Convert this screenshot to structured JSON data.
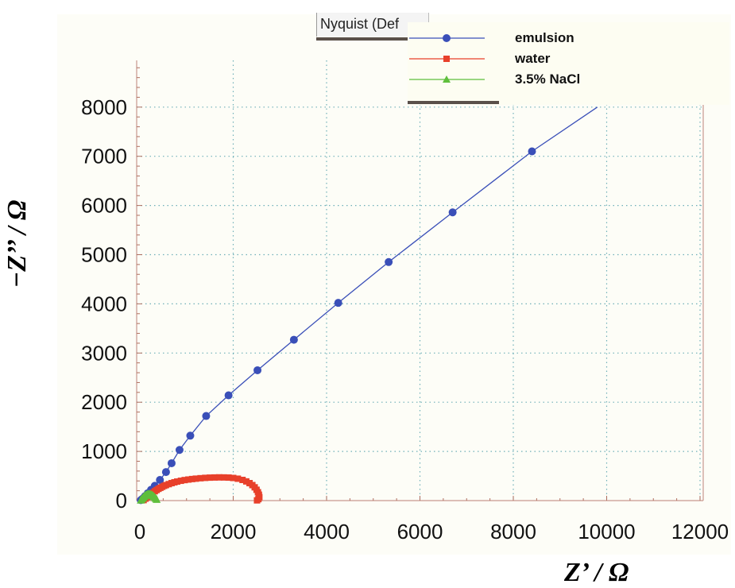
{
  "chart_data": {
    "type": "scatter",
    "title": "Nyquist (Def",
    "xlabel": "Z’ / Ω",
    "ylabel": "−Z’’ / Ω",
    "xlim": [
      0,
      12000
    ],
    "ylim": [
      0,
      8000
    ],
    "x_ticks": [
      "0",
      "2000",
      "4000",
      "6000",
      "8000",
      "10000",
      "12000"
    ],
    "y_ticks": [
      "0",
      "1000",
      "2000",
      "3000",
      "4000",
      "5000",
      "6000",
      "7000",
      "8000"
    ],
    "grid": true,
    "legend_position": "top-right",
    "series": [
      {
        "name": "emulsion",
        "color": "#3a4fb8",
        "marker": "circle",
        "x": [
          20,
          60,
          110,
          170,
          240,
          320,
          430,
          560,
          680,
          850,
          1080,
          1420,
          1900,
          2520,
          3300,
          4250,
          5330,
          6700,
          8400,
          9800
        ],
        "y": [
          10,
          40,
          90,
          150,
          220,
          300,
          420,
          580,
          760,
          1030,
          1320,
          1720,
          2140,
          2650,
          3270,
          4020,
          4850,
          5860,
          7100,
          8000
        ],
        "marker_shown": [
          true,
          true,
          true,
          true,
          true,
          true,
          true,
          true,
          true,
          true,
          true,
          true,
          true,
          true,
          true,
          true,
          true,
          true,
          true,
          false
        ]
      },
      {
        "name": "water",
        "color": "#e8402a",
        "marker": "square",
        "x": [
          80,
          120,
          160,
          200,
          240,
          280,
          320,
          360,
          400,
          440,
          480,
          520,
          560,
          620,
          680,
          740,
          800,
          880,
          960,
          1040,
          1120,
          1200,
          1300,
          1400,
          1500,
          1600,
          1700,
          1800,
          1900,
          2000,
          2100,
          2200,
          2280,
          2350,
          2410,
          2460,
          2500,
          2530,
          2550,
          2560,
          2540,
          2510
        ],
        "y": [
          10,
          40,
          70,
          100,
          130,
          160,
          190,
          215,
          240,
          260,
          280,
          300,
          315,
          335,
          355,
          372,
          387,
          403,
          417,
          428,
          438,
          446,
          455,
          462,
          467,
          470,
          472,
          471,
          468,
          460,
          445,
          420,
          390,
          355,
          315,
          270,
          220,
          170,
          120,
          70,
          30,
          5
        ],
        "marker_shown": []
      },
      {
        "name": "3.5% NaCl",
        "color": "#5fbf3c",
        "marker": "triangle",
        "x": [
          20,
          40,
          60,
          80,
          100,
          120,
          140,
          160,
          180,
          200,
          220,
          240,
          260,
          280,
          300,
          320,
          340,
          360
        ],
        "y": [
          5,
          25,
          45,
          65,
          85,
          100,
          112,
          120,
          124,
          125,
          122,
          115,
          105,
          92,
          76,
          58,
          38,
          18
        ],
        "marker_shown": []
      }
    ]
  }
}
